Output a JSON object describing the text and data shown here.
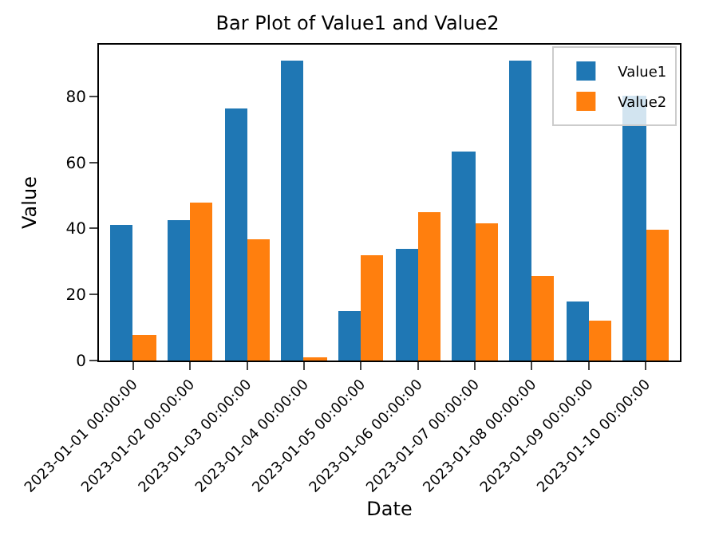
{
  "chart_data": {
    "type": "bar",
    "title": "Bar Plot of Value1 and Value2",
    "xlabel": "Date",
    "ylabel": "Value",
    "categories": [
      "2023-01-01 00:00:00",
      "2023-01-02 00:00:00",
      "2023-01-03 00:00:00",
      "2023-01-04 00:00:00",
      "2023-01-05 00:00:00",
      "2023-01-06 00:00:00",
      "2023-01-07 00:00:00",
      "2023-01-08 00:00:00",
      "2023-01-09 00:00:00",
      "2023-01-10 00:00:00"
    ],
    "series": [
      {
        "name": "Value1",
        "color": "#1f77b4",
        "values": [
          41.3,
          42.7,
          76.3,
          91,
          14.8,
          33.9,
          63.1,
          91,
          17.7,
          80
        ]
      },
      {
        "name": "Value2",
        "color": "#ff7f0e",
        "values": [
          7.6,
          47.9,
          36.6,
          1.1,
          31.9,
          45.1,
          41.8,
          25.7,
          12.0,
          39.4
        ]
      }
    ],
    "ylim": [
      0,
      95.7
    ],
    "yticks": [
      0,
      20,
      40,
      60,
      80
    ],
    "legend": "top right"
  }
}
